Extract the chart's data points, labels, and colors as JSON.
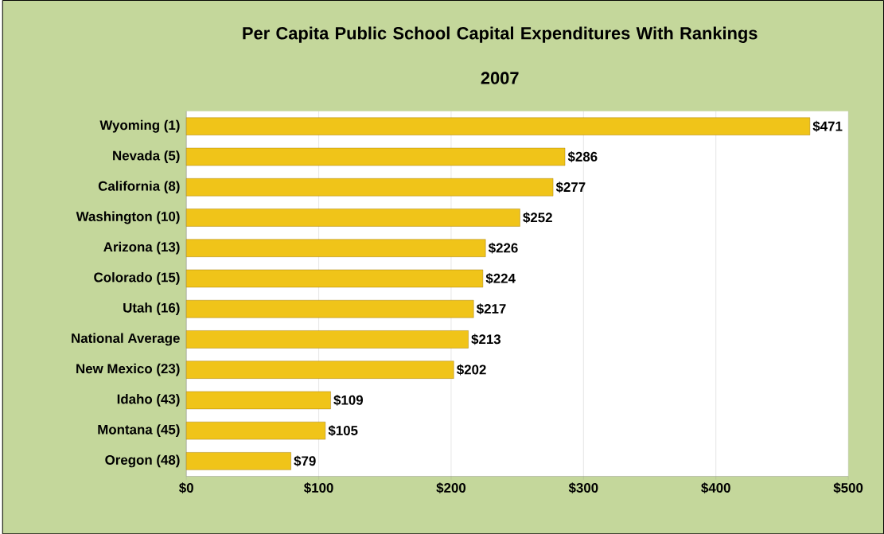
{
  "chart_data": {
    "type": "bar",
    "orientation": "horizontal",
    "title": "Per Capita Public School Capital Expenditures With Rankings",
    "subtitle": "2007",
    "categories": [
      "Wyoming (1)",
      "Nevada (5)",
      "California (8)",
      "Washington (10)",
      "Arizona (13)",
      "Colorado (15)",
      "Utah (16)",
      "National Average",
      "New Mexico (23)",
      "Idaho (43)",
      "Montana (45)",
      "Oregon (48)"
    ],
    "values": [
      471,
      286,
      277,
      252,
      226,
      224,
      217,
      213,
      202,
      109,
      105,
      79
    ],
    "value_labels": [
      "$471",
      "$286",
      "$277",
      "$252",
      "$226",
      "$224",
      "$217",
      "$213",
      "$202",
      "$109",
      "$105",
      "$79"
    ],
    "color": "#f0c419",
    "xlim": [
      0,
      500
    ],
    "xticks": [
      {
        "value": 0,
        "label": "$0"
      },
      {
        "value": 100,
        "label": "$100"
      },
      {
        "value": 200,
        "label": "$200"
      },
      {
        "value": 300,
        "label": "$300"
      },
      {
        "value": 400,
        "label": "$400"
      },
      {
        "value": 500,
        "label": "$500"
      }
    ],
    "grid": "x"
  }
}
